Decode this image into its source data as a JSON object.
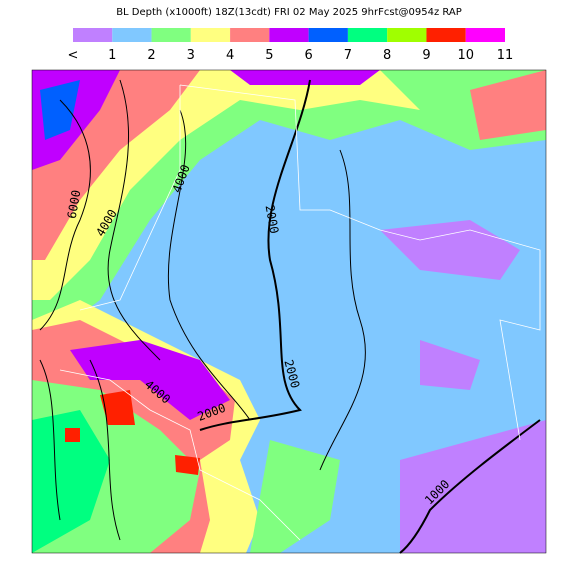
{
  "header": {
    "title": "BL Depth  (x1000ft)  18Z(13cdt) FRI 02 May 2025  9hrFcst@0954z RAP"
  },
  "legend": {
    "labels": [
      "<",
      "1",
      "2",
      "3",
      "4",
      "5",
      "6",
      "7",
      "8",
      "9",
      "10",
      "11"
    ],
    "colors": [
      "#c080ff",
      "#80c8ff",
      "#80ff80",
      "#ffff80",
      "#ff8080",
      "#c000ff",
      "#0060ff",
      "#00ff80",
      "#a0ff00",
      "#ff2000",
      "#ff00ff"
    ]
  },
  "contour_labels": [
    "6000",
    "4000",
    "4000",
    "2000",
    "2000",
    "4000",
    "2000",
    "1000"
  ]
}
